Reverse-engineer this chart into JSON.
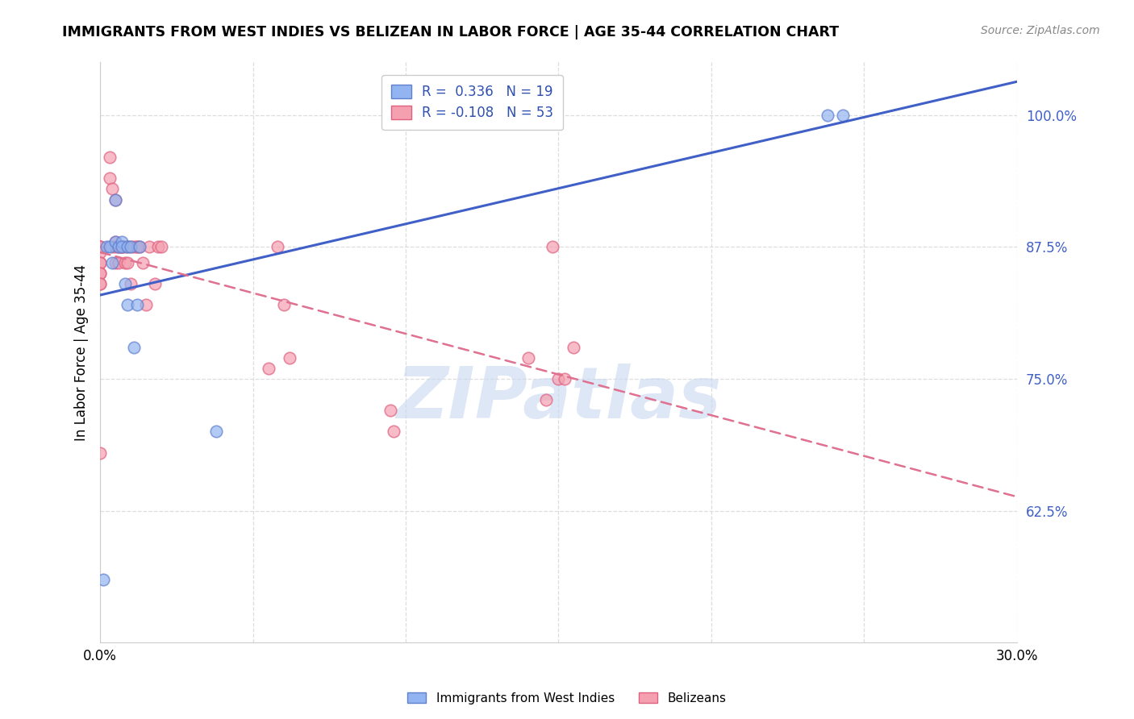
{
  "title": "IMMIGRANTS FROM WEST INDIES VS BELIZEAN IN LABOR FORCE | AGE 35-44 CORRELATION CHART",
  "source": "Source: ZipAtlas.com",
  "ylabel_label": "In Labor Force | Age 35-44",
  "xlim": [
    0.0,
    0.3
  ],
  "ylim": [
    0.5,
    1.05
  ],
  "xticks": [
    0.0,
    0.05,
    0.1,
    0.15,
    0.2,
    0.25,
    0.3
  ],
  "xticklabels": [
    "0.0%",
    "",
    "",
    "",
    "",
    "",
    "30.0%"
  ],
  "yticks": [
    0.625,
    0.75,
    0.875,
    1.0
  ],
  "yticklabels": [
    "62.5%",
    "75.0%",
    "87.5%",
    "100.0%"
  ],
  "blue_color": "#92B4F0",
  "pink_color": "#F4A0B0",
  "blue_edge_color": "#6080D0",
  "pink_edge_color": "#E06080",
  "blue_line_color": "#4060C8",
  "pink_line_color": "#E07090",
  "west_indies_x": [
    0.001,
    0.002,
    0.003,
    0.004,
    0.005,
    0.005,
    0.006,
    0.007,
    0.007,
    0.008,
    0.009,
    0.009,
    0.01,
    0.011,
    0.012,
    0.013,
    0.038,
    0.238,
    0.243
  ],
  "west_indies_y": [
    0.56,
    0.875,
    0.875,
    0.86,
    0.92,
    0.88,
    0.875,
    0.88,
    0.875,
    0.84,
    0.875,
    0.82,
    0.875,
    0.78,
    0.82,
    0.875,
    0.7,
    1.0,
    1.0
  ],
  "belizean_x": [
    0.0,
    0.0,
    0.0,
    0.0,
    0.0,
    0.0,
    0.0,
    0.0,
    0.0,
    0.0,
    0.0,
    0.003,
    0.003,
    0.004,
    0.004,
    0.005,
    0.005,
    0.005,
    0.005,
    0.006,
    0.006,
    0.006,
    0.007,
    0.007,
    0.007,
    0.008,
    0.008,
    0.009,
    0.009,
    0.01,
    0.01,
    0.011,
    0.012,
    0.012,
    0.013,
    0.014,
    0.015,
    0.016,
    0.018,
    0.019,
    0.02,
    0.055,
    0.058,
    0.06,
    0.062,
    0.095,
    0.096,
    0.14,
    0.146,
    0.148,
    0.15,
    0.152,
    0.155
  ],
  "belizean_y": [
    0.875,
    0.875,
    0.875,
    0.87,
    0.86,
    0.86,
    0.85,
    0.85,
    0.84,
    0.84,
    0.68,
    0.96,
    0.94,
    0.93,
    0.875,
    0.92,
    0.88,
    0.875,
    0.86,
    0.875,
    0.875,
    0.86,
    0.875,
    0.875,
    0.875,
    0.875,
    0.86,
    0.875,
    0.86,
    0.875,
    0.84,
    0.875,
    0.875,
    0.875,
    0.875,
    0.86,
    0.82,
    0.875,
    0.84,
    0.875,
    0.875,
    0.76,
    0.875,
    0.82,
    0.77,
    0.72,
    0.7,
    0.77,
    0.73,
    0.875,
    0.75,
    0.75,
    0.78
  ],
  "watermark_text": "ZIPatlas",
  "watermark_color": "#C8D8F0",
  "legend_label_1": "R =  0.336   N = 19",
  "legend_label_2": "R = -0.108   N = 53",
  "bottom_label_1": "Immigrants from West Indies",
  "bottom_label_2": "Belizeans"
}
